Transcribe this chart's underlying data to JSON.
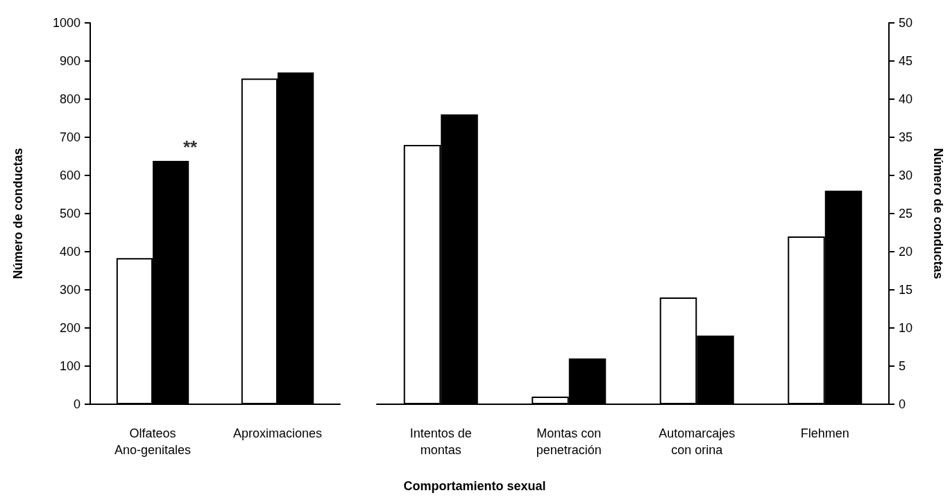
{
  "chart_data": [
    {
      "type": "bar",
      "categories": [
        "Olfateos\nAno-genitales",
        "Aproximaciones"
      ],
      "series": [
        {
          "color": "#ffffff",
          "values": [
            383,
            854
          ]
        },
        {
          "color": "#000000",
          "values": [
            638,
            870
          ]
        }
      ],
      "ylabel": "Número de conductas",
      "ylim": [
        0,
        1000
      ],
      "yticks": [
        0,
        100,
        200,
        300,
        400,
        500,
        600,
        700,
        800,
        900,
        1000
      ],
      "annotations": [
        {
          "text": "**",
          "x": "Olfateos\nAno-genitales",
          "y": 638
        }
      ]
    },
    {
      "type": "bar",
      "categories": [
        "Intentos de\nmontas",
        "Montas con\npenetración",
        "Automarcajes\ncon orina",
        "Flehmen"
      ],
      "series": [
        {
          "color": "#ffffff",
          "values": [
            34,
            1,
            14,
            22
          ]
        },
        {
          "color": "#000000",
          "values": [
            38,
            6,
            9,
            28
          ]
        }
      ],
      "xlabel": "Comportamiento sexual",
      "ylabel": "Número de conductas",
      "ylim": [
        0,
        50
      ],
      "yticks": [
        0,
        5,
        10,
        15,
        20,
        25,
        30,
        35,
        40,
        45,
        50
      ]
    }
  ]
}
